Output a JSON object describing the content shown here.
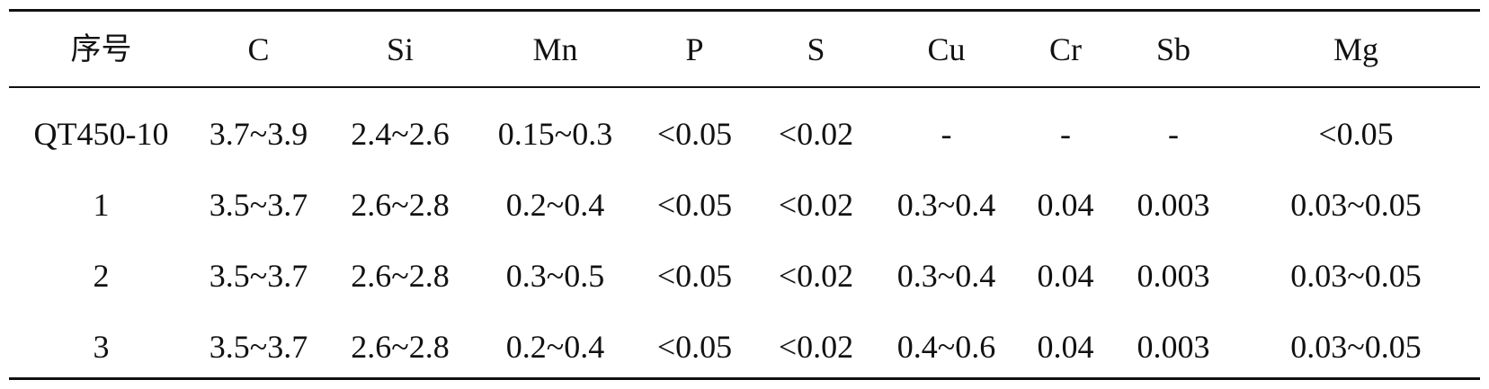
{
  "table": {
    "headers": [
      "序号",
      "C",
      "Si",
      "Mn",
      "P",
      "S",
      "Cu",
      "Cr",
      "Sb",
      "Mg"
    ],
    "rows": [
      [
        "QT450-10",
        "3.7~3.9",
        "2.4~2.6",
        "0.15~0.3",
        "<0.05",
        "<0.02",
        "-",
        "-",
        "-",
        "<0.05"
      ],
      [
        "1",
        "3.5~3.7",
        "2.6~2.8",
        "0.2~0.4",
        "<0.05",
        "<0.02",
        "0.3~0.4",
        "0.04",
        "0.003",
        "0.03~0.05"
      ],
      [
        "2",
        "3.5~3.7",
        "2.6~2.8",
        "0.3~0.5",
        "<0.05",
        "<0.02",
        "0.3~0.4",
        "0.04",
        "0.003",
        "0.03~0.05"
      ],
      [
        "3",
        "3.5~3.7",
        "2.6~2.8",
        "0.2~0.4",
        "<0.05",
        "<0.02",
        "0.4~0.6",
        "0.04",
        "0.003",
        "0.03~0.05"
      ]
    ]
  }
}
